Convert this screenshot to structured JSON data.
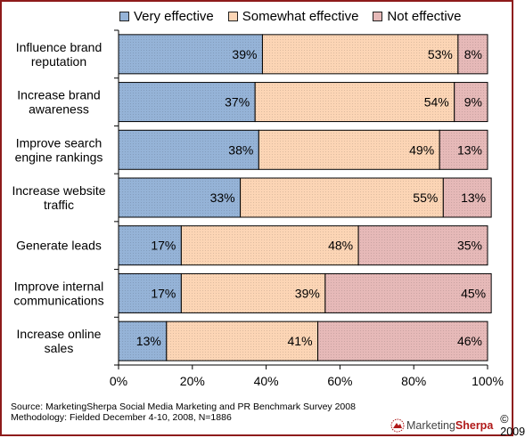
{
  "chart_data": {
    "type": "bar",
    "orientation": "horizontal",
    "stacked": true,
    "categories": [
      [
        "Influence brand",
        "reputation"
      ],
      [
        "Increase brand",
        "awareness"
      ],
      [
        "Improve search",
        "engine rankings"
      ],
      [
        "Increase website",
        "traffic"
      ],
      [
        "Generate leads"
      ],
      [
        "Improve internal",
        "communications"
      ],
      [
        "Increase online",
        "sales"
      ]
    ],
    "series": [
      {
        "name": "Very effective",
        "color": "#95b3d7",
        "values": [
          39,
          37,
          38,
          33,
          17,
          17,
          13
        ]
      },
      {
        "name": "Somewhat effective",
        "color": "#fcd5b5",
        "values": [
          53,
          54,
          49,
          55,
          48,
          39,
          41
        ]
      },
      {
        "name": "Not effective",
        "color": "#e6b9b8",
        "values": [
          8,
          9,
          13,
          13,
          35,
          45,
          46
        ]
      }
    ],
    "xlim": [
      0,
      100
    ],
    "x_ticks": [
      "0%",
      "20%",
      "40%",
      "60%",
      "80%",
      "100%"
    ],
    "legend_position": "top",
    "grid": false
  },
  "footer": {
    "source_line": "Source: MarketingSherpa Social Media Marketing and PR Benchmark Survey 2008",
    "method_line": "Methodology: Fielded December 4-10, 2008, N=1886",
    "brand_part1": "Marketing",
    "brand_part2": "Sherpa",
    "copyright": "© 2009"
  }
}
